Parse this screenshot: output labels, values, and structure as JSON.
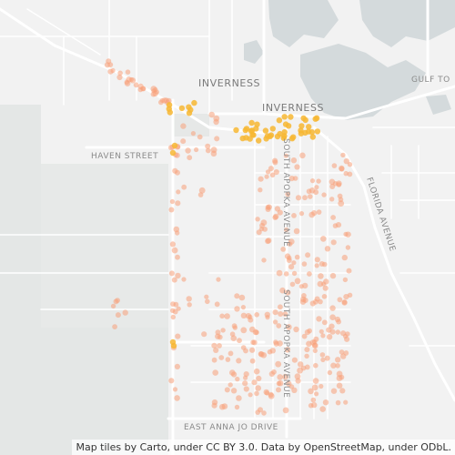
{
  "map": {
    "labels": {
      "gulf_to": "GULF TO",
      "inverness_upper": "INVERNESS",
      "inverness_lower": "INVERNESS",
      "haven_street": "HAVEN STREET",
      "south_apopka_avenue_1": "SOUTH APOPKA AVENUE",
      "south_apopka_avenue_2": "SOUTH APOPKA AVENUE",
      "florida_avenue": "FLORIDA AVENUE",
      "east_anna_jo_drive": "EAST ANNA JO DRIVE"
    },
    "attribution": "Map tiles by Carto, under CC BY 3.0. Data by OpenStreetMap, under ODbL.",
    "colors": {
      "background": "#f2f2f2",
      "water": "#d4dadc",
      "park": "#e4e7e6",
      "road": "#ffffff",
      "road_edge": "#d9d9d9",
      "dot_low": "#f7a07a",
      "dot_high": "#f7b733"
    }
  }
}
